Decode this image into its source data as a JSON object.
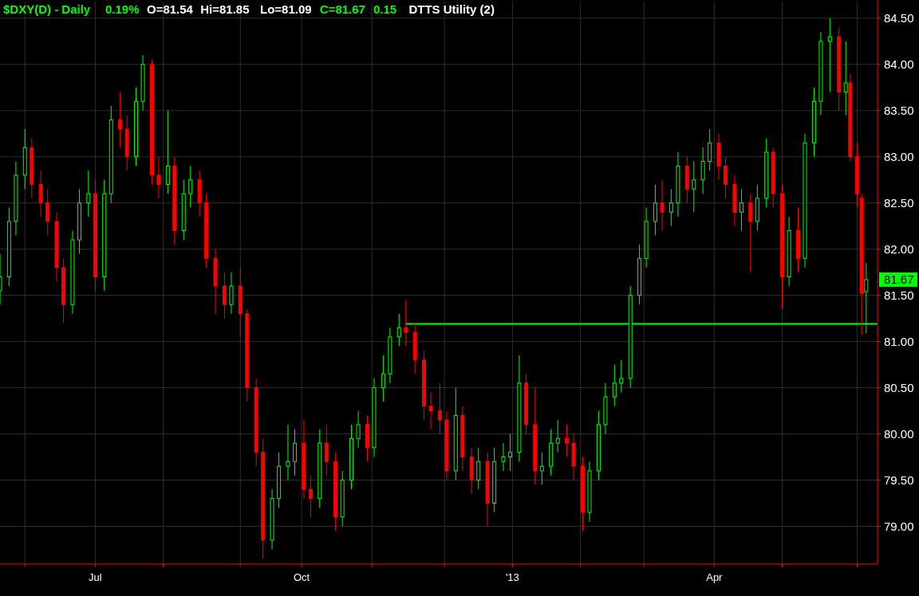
{
  "chart_data": {
    "type": "candlestick",
    "title": "$DXY(D) - Daily  0.19%  O=81.54  Hi=81.85  Lo=81.09  C=81.67  0.15  DTTS Utility (2)",
    "x": [
      "2012-05-21",
      "2012-05-25",
      "2012-05-28",
      "2012-06-01",
      "2012-06-04",
      "2012-06-08",
      "2012-06-11",
      "2012-06-15",
      "2012-06-18",
      "2012-06-22",
      "2012-06-25",
      "2012-06-29",
      "2012-07-02",
      "2012-07-06",
      "2012-07-09",
      "2012-07-13",
      "2012-07-16",
      "2012-07-20",
      "2012-07-23",
      "2012-07-27",
      "2012-07-30",
      "2012-08-03",
      "2012-08-06",
      "2012-08-10",
      "2012-08-13",
      "2012-08-17",
      "2012-08-20",
      "2012-08-24",
      "2012-08-28",
      "2012-08-31",
      "2012-09-04",
      "2012-09-07",
      "2012-09-11",
      "2012-09-14",
      "2012-09-18",
      "2012-09-21",
      "2012-09-25",
      "2012-09-28",
      "2012-10-02",
      "2012-10-05",
      "2012-10-09",
      "2012-10-12",
      "2012-10-16",
      "2012-10-19",
      "2012-10-23",
      "2012-10-26",
      "2012-10-30",
      "2012-11-02",
      "2012-11-06",
      "2012-11-09",
      "2012-11-13",
      "2012-11-16",
      "2012-11-20",
      "2012-11-24",
      "2012-11-27",
      "2012-12-01",
      "2012-12-04",
      "2012-12-08",
      "2012-12-11",
      "2012-12-15",
      "2012-12-18",
      "2012-12-22",
      "2012-12-25",
      "2012-12-29",
      "2013-01-01",
      "2013-01-05",
      "2013-01-08",
      "2013-01-12",
      "2013-01-15",
      "2013-01-19",
      "2013-01-22",
      "2013-01-26",
      "2013-01-29",
      "2013-02-02",
      "2013-02-05",
      "2013-02-09",
      "2013-02-12",
      "2013-02-16",
      "2013-02-19",
      "2013-02-23",
      "2013-02-27",
      "2013-03-02",
      "2013-03-06",
      "2013-03-09",
      "2013-03-13",
      "2013-03-16",
      "2013-03-20",
      "2013-03-23",
      "2013-03-27",
      "2013-03-30",
      "2013-04-03",
      "2013-04-06",
      "2013-04-10",
      "2013-04-13",
      "2013-04-17",
      "2013-04-20",
      "2013-04-24",
      "2013-04-27",
      "2013-05-01",
      "2013-05-04",
      "2013-05-08",
      "2013-05-11",
      "2013-05-15",
      "2013-05-18",
      "2013-05-22",
      "2013-05-26",
      "2013-05-29",
      "2013-05-31",
      "2013-06-03",
      "2013-06-05",
      "2013-06-07"
    ],
    "ohlc": [
      [
        81.55,
        81.95,
        81.4,
        81.7
      ],
      [
        81.7,
        82.45,
        81.6,
        82.3
      ],
      [
        82.3,
        82.95,
        82.15,
        82.8
      ],
      [
        82.8,
        83.3,
        82.65,
        83.1
      ],
      [
        83.1,
        83.2,
        82.55,
        82.7
      ],
      [
        82.7,
        82.85,
        82.35,
        82.5
      ],
      [
        82.5,
        82.65,
        82.15,
        82.3
      ],
      [
        82.3,
        82.4,
        81.65,
        81.8
      ],
      [
        81.8,
        81.9,
        81.2,
        81.4
      ],
      [
        81.4,
        82.2,
        81.3,
        82.1
      ],
      [
        82.1,
        82.65,
        81.95,
        82.5
      ],
      [
        82.5,
        82.85,
        82.35,
        82.6
      ],
      [
        82.6,
        82.75,
        81.55,
        81.7
      ],
      [
        81.7,
        82.75,
        81.55,
        82.6
      ],
      [
        82.6,
        83.55,
        82.5,
        83.4
      ],
      [
        83.4,
        83.7,
        83.1,
        83.3
      ],
      [
        83.3,
        83.45,
        82.85,
        83.0
      ],
      [
        83.0,
        83.75,
        82.9,
        83.6
      ],
      [
        83.6,
        84.1,
        83.5,
        84.0
      ],
      [
        84.0,
        84.05,
        82.7,
        82.8
      ],
      [
        82.8,
        83.0,
        82.55,
        82.7
      ],
      [
        82.7,
        83.5,
        82.6,
        82.9
      ],
      [
        82.9,
        83.0,
        82.05,
        82.2
      ],
      [
        82.2,
        82.75,
        82.1,
        82.6
      ],
      [
        82.6,
        82.9,
        82.45,
        82.75
      ],
      [
        82.75,
        82.85,
        82.35,
        82.5
      ],
      [
        82.5,
        82.6,
        81.8,
        81.9
      ],
      [
        81.9,
        82.0,
        81.3,
        81.6
      ],
      [
        81.6,
        81.75,
        81.25,
        81.4
      ],
      [
        81.4,
        81.75,
        81.3,
        81.6
      ],
      [
        81.6,
        81.8,
        81.05,
        81.3
      ],
      [
        81.3,
        81.35,
        80.35,
        80.5
      ],
      [
        80.5,
        80.6,
        79.65,
        79.8
      ],
      [
        79.8,
        79.95,
        78.65,
        78.85
      ],
      [
        78.85,
        79.4,
        78.75,
        79.3
      ],
      [
        79.3,
        79.8,
        79.2,
        79.65
      ],
      [
        79.65,
        80.1,
        79.5,
        79.7
      ],
      [
        79.7,
        80.05,
        79.55,
        79.9
      ],
      [
        79.9,
        80.15,
        79.3,
        79.4
      ],
      [
        79.4,
        79.55,
        79.1,
        79.3
      ],
      [
        79.3,
        80.05,
        79.2,
        79.9
      ],
      [
        79.9,
        80.1,
        79.55,
        79.7
      ],
      [
        79.7,
        79.8,
        78.95,
        79.1
      ],
      [
        79.1,
        79.6,
        79.0,
        79.5
      ],
      [
        79.5,
        80.1,
        79.4,
        79.95
      ],
      [
        79.95,
        80.25,
        79.85,
        80.1
      ],
      [
        80.1,
        80.2,
        79.7,
        79.85
      ],
      [
        79.85,
        80.6,
        79.75,
        80.5
      ],
      [
        80.5,
        80.85,
        80.35,
        80.65
      ],
      [
        80.65,
        81.15,
        80.55,
        81.05
      ],
      [
        81.05,
        81.3,
        80.95,
        81.15
      ],
      [
        81.15,
        81.45,
        80.95,
        81.1
      ],
      [
        81.1,
        81.2,
        80.65,
        80.8
      ],
      [
        80.8,
        80.9,
        80.15,
        80.3
      ],
      [
        80.3,
        80.45,
        80.05,
        80.25
      ],
      [
        80.25,
        80.55,
        80.0,
        80.15
      ],
      [
        80.15,
        80.25,
        79.5,
        79.6
      ],
      [
        79.6,
        80.5,
        79.5,
        80.2
      ],
      [
        80.2,
        80.3,
        79.6,
        79.75
      ],
      [
        79.75,
        79.85,
        79.35,
        79.5
      ],
      [
        79.5,
        79.85,
        79.4,
        79.7
      ],
      [
        79.7,
        79.8,
        79.0,
        79.25
      ],
      [
        79.25,
        79.85,
        79.15,
        79.7
      ],
      [
        79.7,
        79.9,
        79.6,
        79.75
      ],
      [
        79.75,
        80.0,
        79.6,
        79.8
      ],
      [
        79.8,
        80.85,
        79.7,
        80.55
      ],
      [
        80.55,
        80.65,
        80.0,
        80.1
      ],
      [
        80.1,
        80.5,
        79.45,
        79.6
      ],
      [
        79.6,
        79.8,
        79.45,
        79.65
      ],
      [
        79.65,
        80.05,
        79.55,
        79.9
      ],
      [
        79.9,
        80.15,
        79.8,
        79.95
      ],
      [
        79.95,
        80.1,
        79.75,
        79.9
      ],
      [
        79.9,
        80.0,
        79.5,
        79.65
      ],
      [
        79.65,
        79.75,
        78.95,
        79.15
      ],
      [
        79.15,
        79.7,
        79.05,
        79.6
      ],
      [
        79.6,
        80.25,
        79.5,
        80.1
      ],
      [
        80.1,
        80.55,
        80.0,
        80.4
      ],
      [
        80.4,
        80.75,
        80.3,
        80.55
      ],
      [
        80.55,
        80.8,
        80.45,
        80.6
      ],
      [
        80.6,
        81.6,
        80.5,
        81.5
      ],
      [
        81.5,
        82.05,
        81.4,
        81.9
      ],
      [
        81.9,
        82.45,
        81.8,
        82.3
      ],
      [
        82.3,
        82.7,
        82.15,
        82.5
      ],
      [
        82.5,
        82.75,
        82.2,
        82.4
      ],
      [
        82.4,
        82.65,
        82.25,
        82.5
      ],
      [
        82.5,
        83.05,
        82.35,
        82.9
      ],
      [
        82.9,
        83.0,
        82.5,
        82.65
      ],
      [
        82.65,
        82.95,
        82.4,
        82.75
      ],
      [
        82.75,
        83.1,
        82.6,
        82.95
      ],
      [
        82.95,
        83.3,
        82.85,
        83.15
      ],
      [
        83.15,
        83.25,
        82.75,
        82.9
      ],
      [
        82.9,
        83.0,
        82.55,
        82.7
      ],
      [
        82.7,
        82.8,
        82.25,
        82.4
      ],
      [
        82.4,
        82.65,
        82.2,
        82.5
      ],
      [
        82.5,
        82.6,
        81.75,
        82.3
      ],
      [
        82.3,
        82.7,
        82.2,
        82.55
      ],
      [
        82.55,
        83.2,
        82.45,
        83.05
      ],
      [
        83.05,
        83.1,
        82.45,
        82.6
      ],
      [
        82.6,
        82.7,
        81.35,
        81.7
      ],
      [
        81.7,
        82.35,
        81.6,
        82.2
      ],
      [
        82.2,
        82.45,
        81.75,
        81.9
      ],
      [
        81.9,
        83.25,
        81.8,
        83.15
      ],
      [
        83.15,
        83.75,
        83.0,
        83.6
      ],
      [
        83.6,
        84.35,
        83.45,
        84.25
      ],
      [
        84.25,
        84.5,
        83.7,
        84.3
      ],
      [
        84.3,
        84.4,
        83.5,
        83.7
      ],
      [
        83.7,
        84.25,
        83.45,
        83.8
      ],
      [
        83.8,
        83.9,
        82.95,
        83.0
      ],
      [
        83.0,
        83.15,
        82.45,
        82.6
      ],
      [
        82.55,
        82.6,
        81.07,
        81.52
      ],
      [
        81.54,
        81.85,
        81.09,
        81.67
      ]
    ],
    "series": [
      {
        "type": "line",
        "color": "#00ff00",
        "x": [
          "2012-11-16",
          "2013-06-12"
        ],
        "values": [
          81.19,
          81.19
        ]
      }
    ],
    "xlim": [
      "2012-05-21",
      "2013-06-12"
    ],
    "xticks": [
      {
        "value": "2012-06-01",
        "label": null
      },
      {
        "value": "2012-07-02",
        "label": "Jul"
      },
      {
        "value": "2012-08-01",
        "label": null
      },
      {
        "value": "2012-09-04",
        "label": null
      },
      {
        "value": "2012-10-01",
        "label": "Oct"
      },
      {
        "value": "2012-11-01",
        "label": null
      },
      {
        "value": "2012-12-03",
        "label": null
      },
      {
        "value": "2013-01-02",
        "label": "'13"
      },
      {
        "value": "2013-02-01",
        "label": null
      },
      {
        "value": "2013-03-01",
        "label": null
      },
      {
        "value": "2013-04-01",
        "label": "Apr"
      },
      {
        "value": "2013-05-01",
        "label": null
      },
      {
        "value": "2013-06-03",
        "label": null
      }
    ],
    "ylim": [
      78.59,
      84.68
    ],
    "yticks": [
      {
        "value": 79,
        "label": "79.00"
      },
      {
        "value": 79.5,
        "label": "79.50"
      },
      {
        "value": 80,
        "label": "80.00"
      },
      {
        "value": 80.5,
        "label": "80.50"
      },
      {
        "value": 81,
        "label": "81.00"
      },
      {
        "value": 81.5,
        "label": "81.50"
      },
      {
        "value": 82,
        "label": "82.00"
      },
      {
        "value": 82.5,
        "label": "82.50"
      },
      {
        "value": 83,
        "label": "83.00"
      },
      {
        "value": 83.5,
        "label": "83.50"
      },
      {
        "value": 84,
        "label": "84.00"
      },
      {
        "value": 84.5,
        "label": "84.50"
      }
    ],
    "grid": true,
    "annotations": [
      "81.67"
    ]
  }
}
